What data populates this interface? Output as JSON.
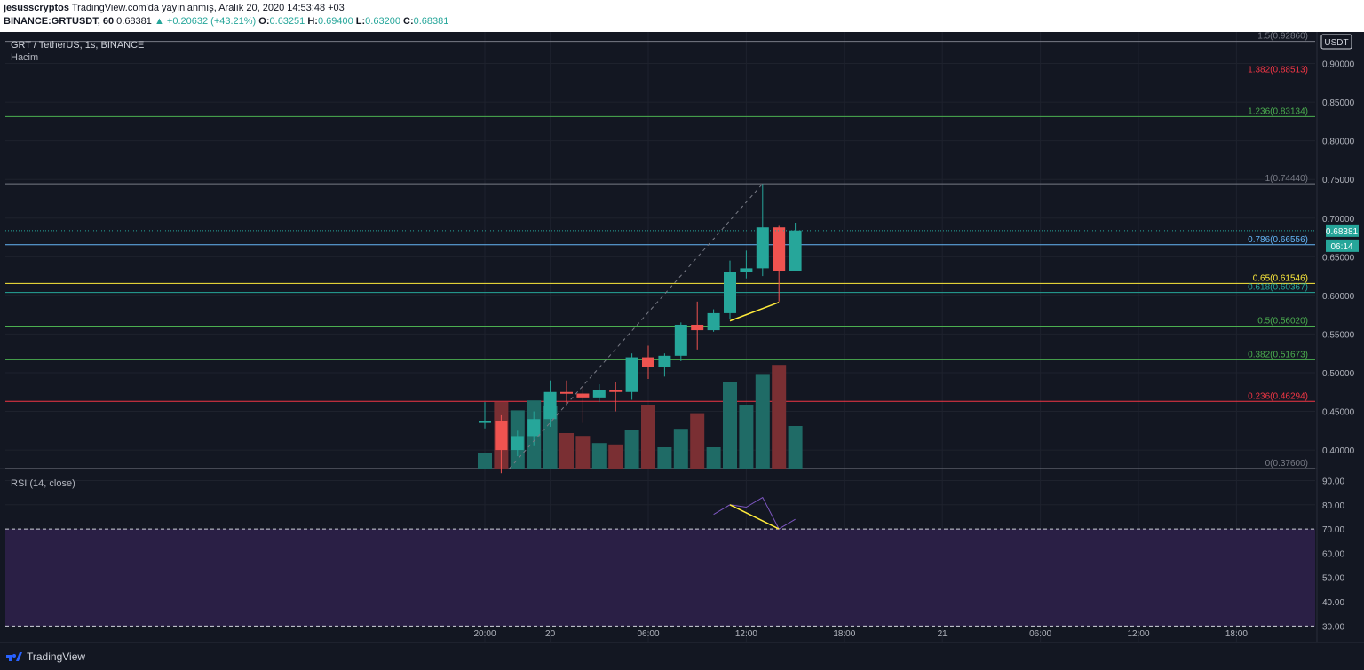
{
  "header": {
    "author": "jesusscryptos",
    "published": "TradingView.com'da yayınlanmış, Aralık 20, 2020 14:53:48 +03",
    "symbol_line": "BINANCE:GRTUSDT, 60",
    "last": "0.68381",
    "change": "▲ +0.20632 (+43.21%)",
    "o_label": "O:",
    "o": "0.63251",
    "h_label": "H:",
    "h": "0.69400",
    "l_label": "L:",
    "l": "0.63200",
    "c_label": "C:",
    "c": "0.68381"
  },
  "pane": {
    "title": "GRT / TetherUS, 1s, BINANCE",
    "volume_label": "Hacim",
    "rsi_label": "RSI (14, close)",
    "currency": "USDT",
    "price_badge": "0.68381",
    "countdown_badge": "06:14"
  },
  "footer": {
    "brand": "TradingView"
  },
  "colors": {
    "bg": "#131722",
    "up": "#26a69a",
    "down": "#ef5350",
    "fib_gray": "#787b86",
    "fib_red": "#f23645",
    "fib_green": "#4caf50",
    "fib_blue": "#64b5f6",
    "fib_yellow": "#ffeb3b",
    "rsi_band": "#2a1f45",
    "rsi_line": "#7e57c2"
  },
  "chart_data": {
    "type": "candlestick",
    "price_axis": {
      "ylim": [
        0.376,
        0.95
      ],
      "ticks": [
        "0.40000",
        "0.45000",
        "0.50000",
        "0.55000",
        "0.60000",
        "0.65000",
        "0.70000",
        "0.75000",
        "0.80000",
        "0.85000",
        "0.90000"
      ]
    },
    "time_axis": {
      "ticks": [
        "20:00",
        "20",
        "06:00",
        "12:00",
        "18:00",
        "21",
        "06:00",
        "12:00",
        "18:00"
      ],
      "tick_index": [
        0,
        4,
        10,
        16,
        22,
        28,
        34,
        40,
        46
      ]
    },
    "candles": [
      {
        "o": 0.435,
        "h": 0.462,
        "l": 0.428,
        "c": 0.438
      },
      {
        "o": 0.438,
        "h": 0.445,
        "l": 0.37,
        "c": 0.4
      },
      {
        "o": 0.4,
        "h": 0.425,
        "l": 0.392,
        "c": 0.418
      },
      {
        "o": 0.418,
        "h": 0.45,
        "l": 0.405,
        "c": 0.44
      },
      {
        "o": 0.44,
        "h": 0.49,
        "l": 0.43,
        "c": 0.475
      },
      {
        "o": 0.475,
        "h": 0.49,
        "l": 0.46,
        "c": 0.473
      },
      {
        "o": 0.473,
        "h": 0.482,
        "l": 0.435,
        "c": 0.468
      },
      {
        "o": 0.468,
        "h": 0.485,
        "l": 0.462,
        "c": 0.478
      },
      {
        "o": 0.478,
        "h": 0.488,
        "l": 0.45,
        "c": 0.475
      },
      {
        "o": 0.475,
        "h": 0.525,
        "l": 0.465,
        "c": 0.52
      },
      {
        "o": 0.52,
        "h": 0.535,
        "l": 0.492,
        "c": 0.508
      },
      {
        "o": 0.508,
        "h": 0.525,
        "l": 0.495,
        "c": 0.522
      },
      {
        "o": 0.522,
        "h": 0.565,
        "l": 0.515,
        "c": 0.562
      },
      {
        "o": 0.562,
        "h": 0.592,
        "l": 0.53,
        "c": 0.555
      },
      {
        "o": 0.555,
        "h": 0.582,
        "l": 0.553,
        "c": 0.577
      },
      {
        "o": 0.577,
        "h": 0.645,
        "l": 0.57,
        "c": 0.63
      },
      {
        "o": 0.63,
        "h": 0.658,
        "l": 0.622,
        "c": 0.635
      },
      {
        "o": 0.635,
        "h": 0.744,
        "l": 0.625,
        "c": 0.688
      },
      {
        "o": 0.688,
        "h": 0.69,
        "l": 0.592,
        "c": 0.632
      },
      {
        "o": 0.632,
        "h": 0.694,
        "l": 0.632,
        "c": 0.684
      }
    ],
    "volume": [
      {
        "v": 0.11,
        "dir": "up"
      },
      {
        "v": 0.47,
        "dir": "down"
      },
      {
        "v": 0.41,
        "dir": "up"
      },
      {
        "v": 0.48,
        "dir": "up"
      },
      {
        "v": 0.44,
        "dir": "up"
      },
      {
        "v": 0.25,
        "dir": "down"
      },
      {
        "v": 0.23,
        "dir": "down"
      },
      {
        "v": 0.18,
        "dir": "up"
      },
      {
        "v": 0.17,
        "dir": "down"
      },
      {
        "v": 0.27,
        "dir": "up"
      },
      {
        "v": 0.45,
        "dir": "down"
      },
      {
        "v": 0.15,
        "dir": "up"
      },
      {
        "v": 0.28,
        "dir": "up"
      },
      {
        "v": 0.39,
        "dir": "down"
      },
      {
        "v": 0.15,
        "dir": "up"
      },
      {
        "v": 0.61,
        "dir": "up"
      },
      {
        "v": 0.45,
        "dir": "up"
      },
      {
        "v": 0.66,
        "dir": "up"
      },
      {
        "v": 0.73,
        "dir": "down"
      },
      {
        "v": 0.3,
        "dir": "up"
      }
    ],
    "fib_levels": [
      {
        "label": "1.5(0.92860)",
        "price": 0.9286,
        "color": "#787b86"
      },
      {
        "label": "1.382(0.88513)",
        "price": 0.88513,
        "color": "#f23645"
      },
      {
        "label": "1.236(0.83134)",
        "price": 0.83134,
        "color": "#4caf50"
      },
      {
        "label": "1(0.74440)",
        "price": 0.7444,
        "color": "#787b86"
      },
      {
        "label": "0.786(0.66556)",
        "price": 0.66556,
        "color": "#64b5f6"
      },
      {
        "label": "0.65(0.61546)",
        "price": 0.61546,
        "color": "#ffeb3b"
      },
      {
        "label": "0.618(0.60367)",
        "price": 0.60367,
        "color": "#26a69a"
      },
      {
        "label": "0.5(0.56020)",
        "price": 0.5602,
        "color": "#4caf50"
      },
      {
        "label": "0.382(0.51673)",
        "price": 0.51673,
        "color": "#4caf50"
      },
      {
        "label": "0.236(0.46294)",
        "price": 0.46294,
        "color": "#f23645"
      },
      {
        "label": "0(0.37600)",
        "price": 0.376,
        "color": "#787b86"
      }
    ],
    "trend_line_price": [
      0.376,
      0.7444
    ],
    "trend_line_idx": [
      1.5,
      17
    ],
    "divergence_price_line": {
      "idx": [
        15,
        18
      ],
      "price": [
        0.567,
        0.591
      ]
    },
    "rsi": {
      "ylim": [
        25,
        92
      ],
      "ticks": [
        "30.00",
        "40.00",
        "50.00",
        "60.00",
        "70.00",
        "80.00",
        "90.00"
      ],
      "band": [
        30,
        70
      ],
      "values_idx": [
        14,
        15,
        16,
        17,
        18,
        19
      ],
      "values": [
        76,
        80,
        79,
        83,
        70,
        74
      ],
      "divergence_line": {
        "idx": [
          15,
          18
        ],
        "rsi": [
          80,
          70
        ]
      }
    },
    "last_price": 0.68381
  }
}
